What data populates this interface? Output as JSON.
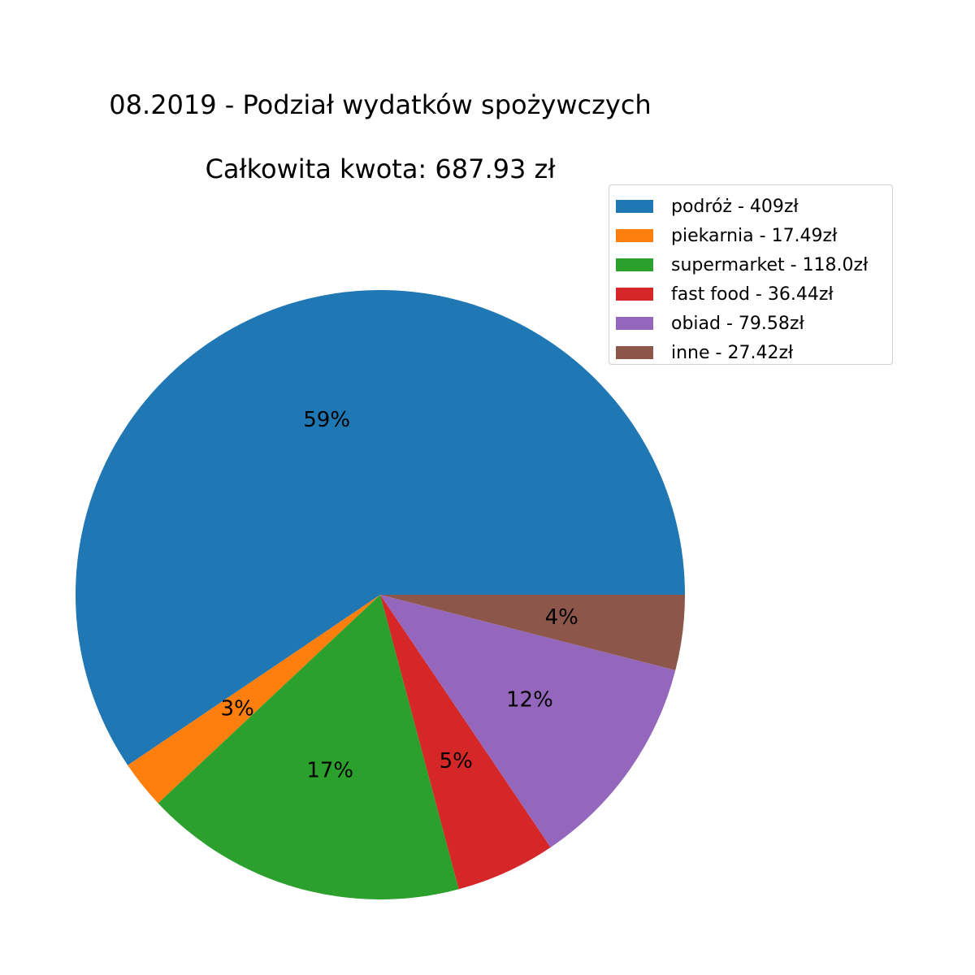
{
  "chart_data": {
    "type": "pie",
    "title": "08.2019 - Podział wydatków spożywczych",
    "subtitle": "Całkowita kwota: 687.93 zł",
    "legend_position": "top-right",
    "slices": [
      {
        "label": "podróż - 409zł",
        "value": 409.0,
        "pct_label": "59%",
        "color": "#1f77b4"
      },
      {
        "label": "piekarnia - 17.49zł",
        "value": 17.49,
        "pct_label": "3%",
        "color": "#ff7f0e"
      },
      {
        "label": "supermarket - 118.0zł",
        "value": 118.0,
        "pct_label": "17%",
        "color": "#2ca02c"
      },
      {
        "label": "fast food - 36.44zł",
        "value": 36.44,
        "pct_label": "5%",
        "color": "#d62728"
      },
      {
        "label": "obiad - 79.58zł",
        "value": 79.58,
        "pct_label": "12%",
        "color": "#9467bd"
      },
      {
        "label": "inne - 27.42zł",
        "value": 27.42,
        "pct_label": "4%",
        "color": "#8c564b"
      }
    ]
  }
}
